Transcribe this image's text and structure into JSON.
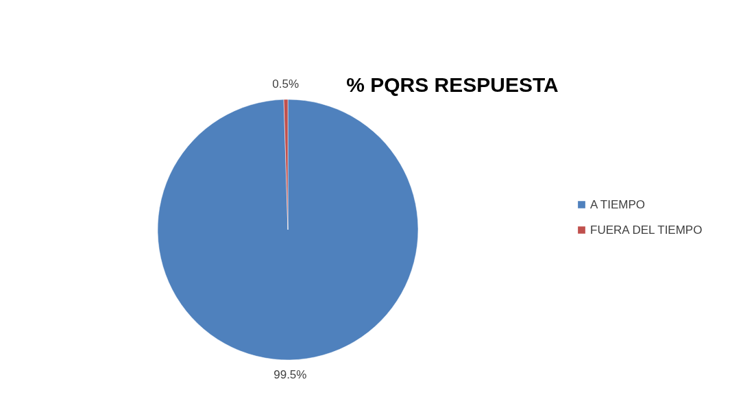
{
  "chart_data": {
    "type": "pie",
    "title": "% PQRS RESPUESTA",
    "categories": [
      "A TIEMPO",
      "FUERA DEL TIEMPO"
    ],
    "values": [
      99.5,
      0.5
    ],
    "colors": [
      "#4f81bd",
      "#c0504d"
    ],
    "value_labels": [
      "99.5%",
      "0.5%"
    ],
    "legend": "right"
  }
}
